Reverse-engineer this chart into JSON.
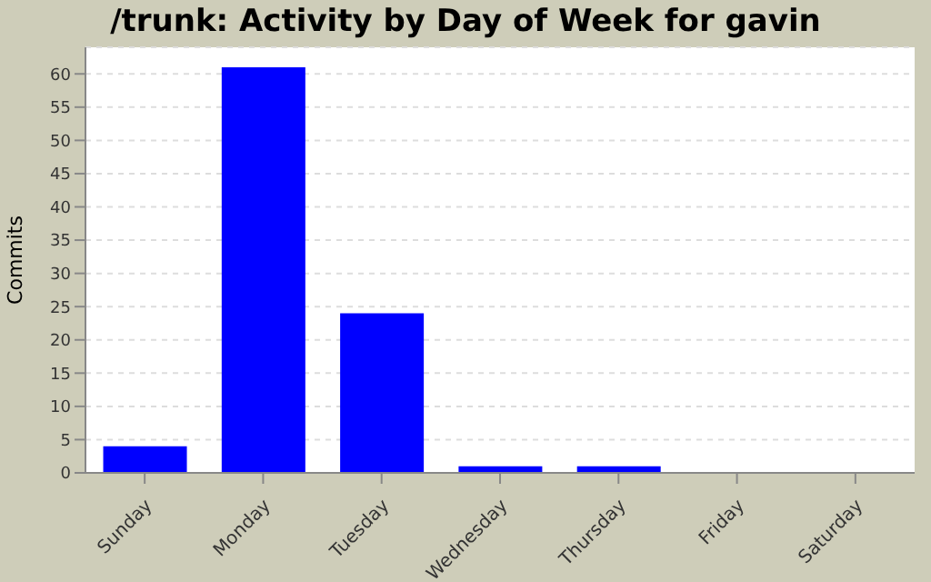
{
  "chart_data": {
    "type": "bar",
    "title": "/trunk: Activity by Day of Week for gavin",
    "ylabel": "Commits",
    "categories": [
      "Sunday",
      "Monday",
      "Tuesday",
      "Wednesday",
      "Thursday",
      "Friday",
      "Saturday"
    ],
    "values": [
      4,
      61,
      24,
      1,
      1,
      0,
      0
    ],
    "color": "#0000ff",
    "ylim": [
      0,
      64
    ],
    "yticks": [
      0,
      5,
      10,
      15,
      20,
      25,
      30,
      35,
      40,
      45,
      50,
      55,
      60
    ],
    "grid": "y"
  }
}
